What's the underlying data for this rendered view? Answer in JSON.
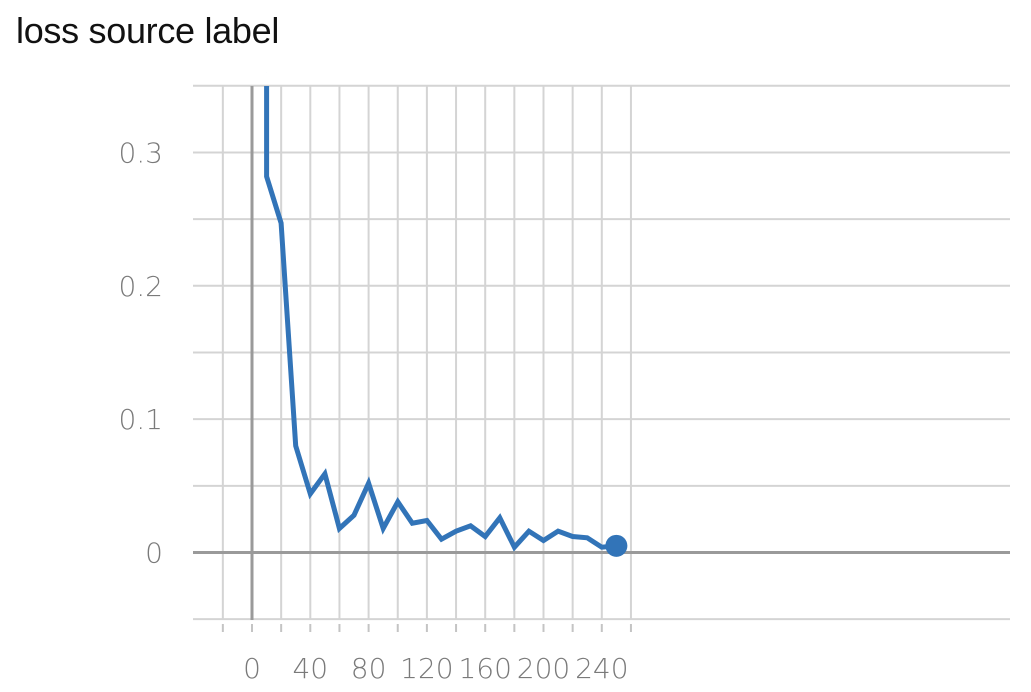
{
  "chart_data": {
    "type": "line",
    "title": "loss source label",
    "xlabel": "",
    "ylabel": "",
    "xlim": [
      -10,
      260
    ],
    "ylim": [
      -0.05,
      0.35
    ],
    "x_ticks": [
      0,
      40,
      80,
      120,
      160,
      200,
      240
    ],
    "x_tick_labels": [
      "0",
      "40",
      "80",
      "120",
      "160",
      "200",
      "240"
    ],
    "y_ticks": [
      0,
      0.1,
      0.2,
      0.3
    ],
    "y_tick_labels": [
      "0",
      "0.1",
      "0.2",
      "0.3"
    ],
    "grid": true,
    "line_color": "#3274b8",
    "series": [
      {
        "x": [
          10,
          10,
          20,
          30,
          40,
          50,
          60,
          70,
          80,
          90,
          100,
          110,
          120,
          130,
          140,
          150,
          160,
          170,
          180,
          190,
          200,
          210,
          220,
          230,
          240,
          250
        ],
        "values": [
          0.36,
          0.282,
          0.247,
          0.08,
          0.044,
          0.059,
          0.018,
          0.028,
          0.052,
          0.018,
          0.038,
          0.022,
          0.024,
          0.01,
          0.016,
          0.02,
          0.012,
          0.026,
          0.004,
          0.016,
          0.009,
          0.016,
          0.012,
          0.011,
          0.004,
          0.005
        ]
      }
    ]
  }
}
